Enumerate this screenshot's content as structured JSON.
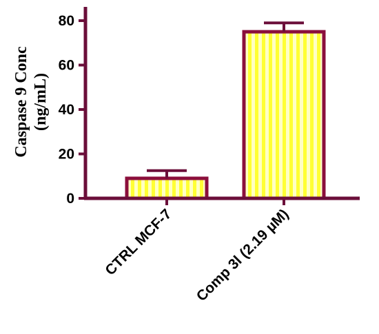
{
  "chart_data": {
    "type": "bar",
    "categories": [
      "CTRL MCF-7",
      "Comp 3l (2.19 µM)"
    ],
    "values": [
      9,
      75
    ],
    "errors": [
      3.5,
      4
    ],
    "ylabel_line1": "Caspase 9 Conc",
    "ylabel_line2": "(ng/mL)",
    "ylim": [
      0,
      85
    ],
    "yticks": [
      0,
      20,
      40,
      60,
      80
    ],
    "grid": false,
    "legend": "none"
  },
  "colors": {
    "axis": "#6b0f3a",
    "bar_edge": "#8b0f3c",
    "bar_fill": "#ffff33",
    "bar_stripe": "#ffffc4",
    "error_bar": "#6b0f3a"
  }
}
